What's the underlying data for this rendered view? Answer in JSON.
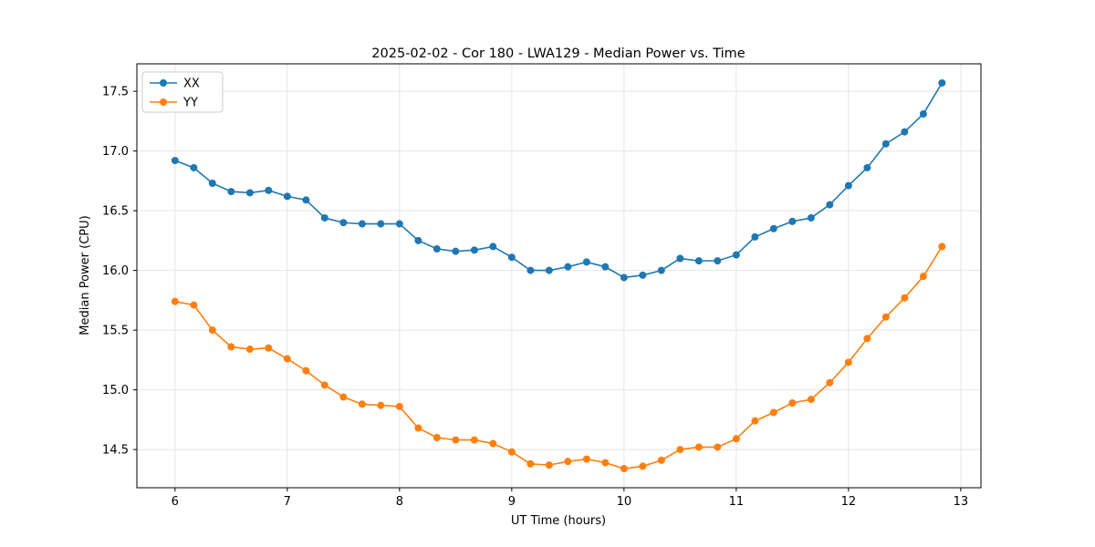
{
  "chart_data": {
    "type": "line",
    "title": "2025-02-02 - Cor 180 - LWA129 - Median Power vs. Time",
    "xlabel": "UT Time (hours)",
    "ylabel": "Median Power (CPU)",
    "xlim": [
      5.66,
      13.18
    ],
    "ylim": [
      14.18,
      17.73
    ],
    "xticks": [
      6,
      7,
      8,
      9,
      10,
      11,
      12,
      13
    ],
    "yticks": [
      14.5,
      15.0,
      15.5,
      16.0,
      16.5,
      17.0,
      17.5
    ],
    "grid": true,
    "legend_position": "upper-left",
    "marker": "circle",
    "x": [
      6.0,
      6.167,
      6.333,
      6.5,
      6.667,
      6.833,
      7.0,
      7.167,
      7.333,
      7.5,
      7.667,
      7.833,
      8.0,
      8.167,
      8.333,
      8.5,
      8.667,
      8.833,
      9.0,
      9.167,
      9.333,
      9.5,
      9.667,
      9.833,
      10.0,
      10.167,
      10.333,
      10.5,
      10.667,
      10.833,
      11.0,
      11.167,
      11.333,
      11.5,
      11.667,
      11.833,
      12.0,
      12.167,
      12.333,
      12.5,
      12.667,
      12.833
    ],
    "series": [
      {
        "name": "XX",
        "color": "#1f77b4",
        "values": [
          16.92,
          16.86,
          16.73,
          16.66,
          16.65,
          16.67,
          16.62,
          16.59,
          16.44,
          16.4,
          16.39,
          16.39,
          16.39,
          16.25,
          16.18,
          16.16,
          16.17,
          16.2,
          16.11,
          16.0,
          16.0,
          16.03,
          16.07,
          16.03,
          15.94,
          15.96,
          16.0,
          16.1,
          16.08,
          16.08,
          16.13,
          16.28,
          16.35,
          16.41,
          16.44,
          16.55,
          16.71,
          16.86,
          17.06,
          17.16,
          17.31,
          17.57
        ]
      },
      {
        "name": "YY",
        "color": "#ff7f0e",
        "values": [
          15.74,
          15.71,
          15.5,
          15.36,
          15.34,
          15.35,
          15.26,
          15.16,
          15.04,
          14.94,
          14.88,
          14.87,
          14.86,
          14.68,
          14.6,
          14.58,
          14.58,
          14.55,
          14.48,
          14.38,
          14.37,
          14.4,
          14.42,
          14.39,
          14.34,
          14.36,
          14.41,
          14.5,
          14.52,
          14.52,
          14.59,
          14.74,
          14.81,
          14.89,
          14.92,
          15.06,
          15.23,
          15.43,
          15.61,
          15.77,
          15.95,
          16.2
        ]
      }
    ]
  }
}
